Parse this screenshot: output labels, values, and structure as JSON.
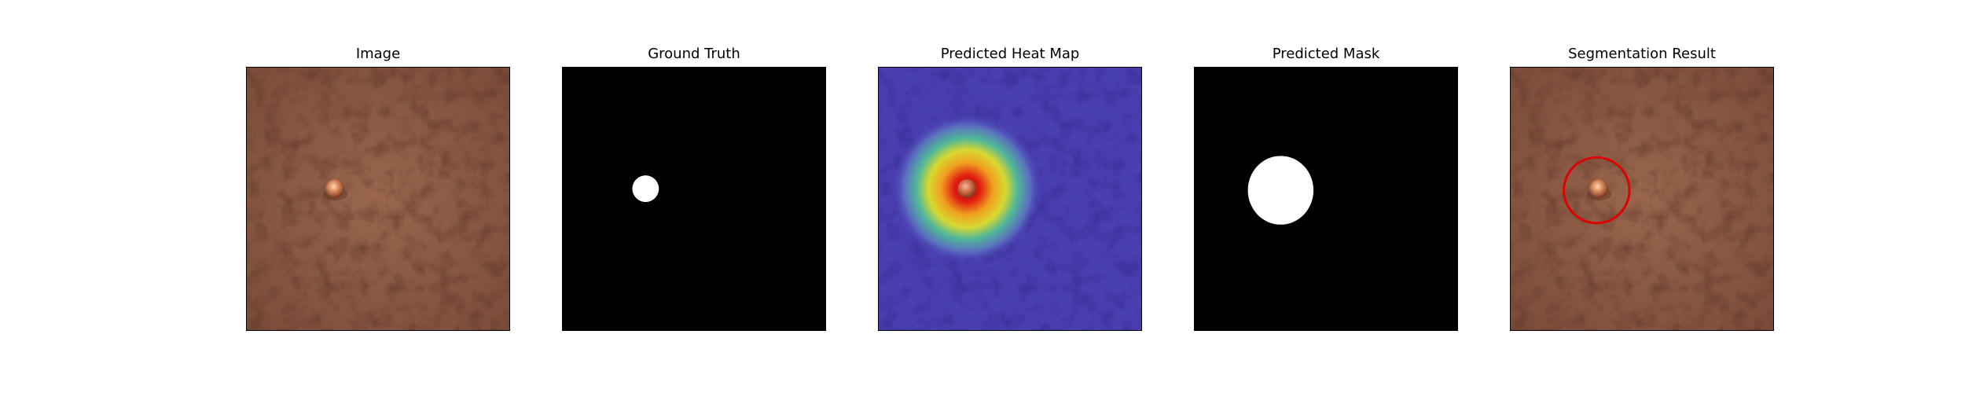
{
  "figure": {
    "panels": [
      {
        "title": "Image"
      },
      {
        "title": "Ground Truth"
      },
      {
        "title": "Predicted Heat Map"
      },
      {
        "title": "Predicted Mask"
      },
      {
        "title": "Segmentation Result"
      }
    ]
  },
  "colors": {
    "leather": "#8a5a45",
    "mask_background": "#000000",
    "mask_foreground": "#ffffff",
    "heatmap_low": "#4a3fb0",
    "heatmap_high": "#d01010",
    "segmentation_outline": "#e00000"
  }
}
